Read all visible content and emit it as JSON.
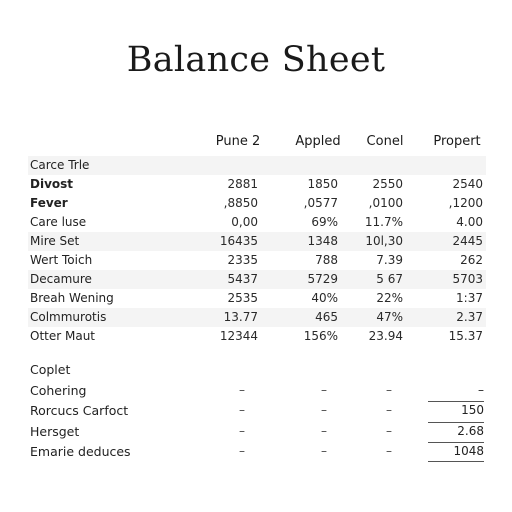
{
  "title": "Balance Sheet",
  "columns": [
    "Pune 2",
    "Appled",
    "Conel",
    "Propert"
  ],
  "rows": [
    {
      "label": "Carce Trle",
      "values": [
        "",
        "",
        "",
        ""
      ],
      "bold": false,
      "shaded": true
    },
    {
      "label": "Divost",
      "values": [
        "2881",
        "1850",
        "2550",
        "2540"
      ],
      "bold": true,
      "shaded": false
    },
    {
      "label": "Fever",
      "values": [
        ",8850",
        ",0577",
        ",0100",
        ",1200"
      ],
      "bold": true,
      "shaded": false
    },
    {
      "label": "Care luse",
      "values": [
        "0,00",
        "69%",
        "11.7%",
        "4.00"
      ],
      "bold": false,
      "shaded": false
    },
    {
      "label": "Mire Set",
      "values": [
        "16435",
        "1348",
        "10l,30",
        "2445"
      ],
      "bold": false,
      "shaded": true
    },
    {
      "label": "Wert Toich",
      "values": [
        "2335",
        "788",
        "7.39",
        "262"
      ],
      "bold": false,
      "shaded": false
    },
    {
      "label": "Decamure",
      "values": [
        "5437",
        "5729",
        "5 67",
        "5703"
      ],
      "bold": false,
      "shaded": true
    },
    {
      "label": "Breah Wening",
      "values": [
        "2535",
        "40%",
        "22%",
        "1:37"
      ],
      "bold": false,
      "shaded": false
    },
    {
      "label": "Colmmurotis",
      "values": [
        "13.77",
        "465",
        "47%",
        "2.37"
      ],
      "bold": false,
      "shaded": true
    },
    {
      "label": "Otter Maut",
      "values": [
        "12344",
        "156%",
        "23.94",
        "15.37"
      ],
      "bold": false,
      "shaded": false
    }
  ],
  "section2": [
    {
      "label": "Coplet",
      "dashes": false,
      "total": ""
    },
    {
      "label": "Cohering",
      "dashes": true,
      "total": "–"
    },
    {
      "label": "Rorcucs Carfoct",
      "dashes": true,
      "total": "150"
    },
    {
      "label": "Hersget",
      "dashes": true,
      "total": "2.68"
    },
    {
      "label": "Emarie deduces",
      "dashes": true,
      "total": "1048"
    }
  ],
  "dash_glyph": "–"
}
